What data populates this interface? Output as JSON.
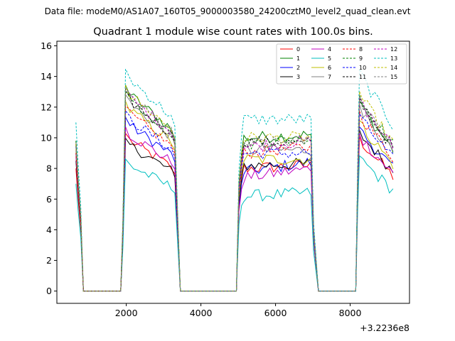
{
  "figure": {
    "suptitle": "Data file: modeM0/AS1A07_160T05_9000003580_24200cztM0_level2_quad_clean.evt"
  },
  "chart_data": {
    "type": "line",
    "title": "Quadrant 1 module wise count rates with 100.0s bins.",
    "xlabel": "",
    "ylabel": "",
    "x_offset_label": "+3.2236e8",
    "xlim": [
      140,
      9590
    ],
    "ylim": [
      -0.8,
      16.3
    ],
    "xticks": [
      2000,
      4000,
      6000,
      8000
    ],
    "xtick_labels": [
      "2000",
      "4000",
      "6000",
      "8000"
    ],
    "yticks": [
      0,
      2,
      4,
      6,
      8,
      10,
      12,
      14,
      16
    ],
    "ytick_labels": [
      "0",
      "2",
      "4",
      "6",
      "8",
      "10",
      "12",
      "14",
      "16"
    ],
    "grid": false,
    "legend_placement": "top-right",
    "segments": [
      {
        "start": 650,
        "end": 850
      },
      {
        "start": 1850,
        "end": 3450
      },
      {
        "start": 4950,
        "end": 7150
      },
      {
        "start": 8150,
        "end": 9150
      }
    ],
    "series": [
      {
        "name": "0",
        "color": "#ff0000",
        "dashed": false,
        "levels": [
          8.0,
          9.8,
          8.0,
          8.2,
          9.6
        ]
      },
      {
        "name": "1",
        "color": "#008000",
        "dashed": false,
        "levels": [
          9.5,
          12.8,
          10.0,
          10.2,
          11.8
        ]
      },
      {
        "name": "2",
        "color": "#0000ff",
        "dashed": false,
        "levels": [
          9.0,
          10.8,
          7.8,
          8.4,
          10.2
        ]
      },
      {
        "name": "3",
        "color": "#000000",
        "dashed": false,
        "levels": [
          8.5,
          9.5,
          8.2,
          8.3,
          10.0
        ]
      },
      {
        "name": "4",
        "color": "#bf00bf",
        "dashed": false,
        "levels": [
          8.8,
          10.2,
          7.4,
          8.0,
          9.8
        ]
      },
      {
        "name": "5",
        "color": "#00bfbf",
        "dashed": false,
        "levels": [
          7.0,
          8.2,
          6.2,
          6.4,
          8.4
        ]
      },
      {
        "name": "6",
        "color": "#bfbf00",
        "dashed": false,
        "levels": [
          9.2,
          11.8,
          8.6,
          8.6,
          10.6
        ]
      },
      {
        "name": "7",
        "color": "#808080",
        "dashed": false,
        "levels": [
          9.8,
          12.2,
          9.2,
          9.2,
          11.6
        ]
      },
      {
        "name": "8",
        "color": "#ff0000",
        "dashed": true,
        "levels": [
          9.0,
          11.5,
          9.0,
          9.4,
          11.2
        ]
      },
      {
        "name": "9",
        "color": "#008000",
        "dashed": true,
        "levels": [
          9.8,
          12.5,
          9.6,
          10.0,
          12.2
        ]
      },
      {
        "name": "10",
        "color": "#0000ff",
        "dashed": true,
        "levels": [
          9.4,
          11.2,
          9.0,
          9.0,
          11.0
        ]
      },
      {
        "name": "11",
        "color": "#000000",
        "dashed": true,
        "levels": [
          9.6,
          12.4,
          9.8,
          9.6,
          12.0
        ]
      },
      {
        "name": "12",
        "color": "#bf00bf",
        "dashed": true,
        "levels": [
          9.6,
          12.6,
          9.4,
          9.8,
          12.0
        ]
      },
      {
        "name": "13",
        "color": "#00bfbf",
        "dashed": true,
        "levels": [
          11.0,
          13.8,
          11.2,
          11.2,
          13.8
        ]
      },
      {
        "name": "14",
        "color": "#bfbf00",
        "dashed": true,
        "levels": [
          9.6,
          12.8,
          10.0,
          10.0,
          12.4
        ]
      },
      {
        "name": "15",
        "color": "#808080",
        "dashed": true,
        "levels": [
          9.4,
          12.6,
          9.6,
          9.8,
          12.2
        ]
      }
    ]
  }
}
